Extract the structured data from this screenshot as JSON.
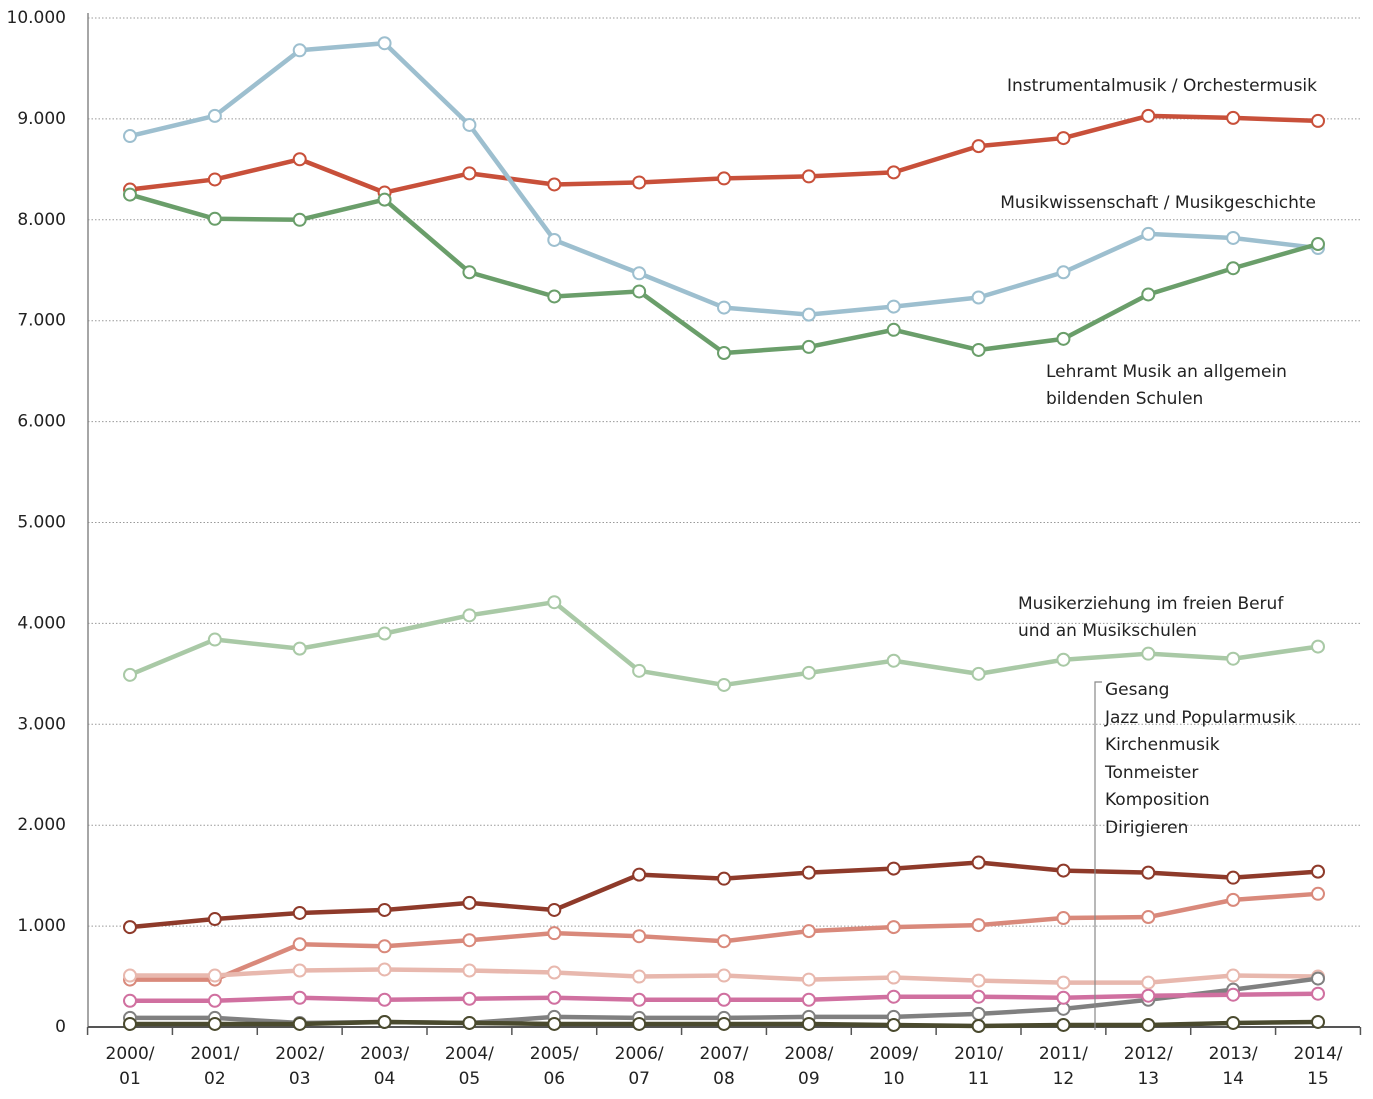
{
  "chart_data": {
    "type": "line",
    "categories": [
      "2000/ 01",
      "2001/ 02",
      "2002/ 03",
      "2003/ 04",
      "2004/ 05",
      "2005/ 06",
      "2006/ 07",
      "2007/ 08",
      "2008/ 09",
      "2009/ 10",
      "2010/ 11",
      "2011/ 12",
      "2012/ 13",
      "2013/ 14",
      "2014/ 15"
    ],
    "series": [
      {
        "name": "Instrumentalmusik / Orchestermusik",
        "color": "#c8503a",
        "values": [
          8300,
          8400,
          8600,
          8270,
          8460,
          8350,
          8370,
          8410,
          8430,
          8470,
          8730,
          8810,
          9030,
          9010,
          8980
        ]
      },
      {
        "name": "Musikwissenschaft / Musikgeschichte",
        "color": "#9dbfcf",
        "values": [
          8830,
          9030,
          9680,
          9750,
          8940,
          7800,
          7470,
          7130,
          7060,
          7140,
          7230,
          7480,
          7860,
          7820,
          7720
        ]
      },
      {
        "name": "Lehramt Musik an allgemein bildenden Schulen",
        "color": "#6a9e6a",
        "values": [
          8250,
          8010,
          8000,
          8200,
          7480,
          7240,
          7290,
          6680,
          6740,
          6910,
          6710,
          6820,
          7260,
          7520,
          7760
        ]
      },
      {
        "name": "Musikerziehung im freien Beruf und an Musikschulen",
        "color": "#a9c9a6",
        "values": [
          3490,
          3840,
          3750,
          3900,
          4080,
          4210,
          3530,
          3390,
          3510,
          3630,
          3500,
          3640,
          3700,
          3650,
          3770
        ]
      },
      {
        "name": "Gesang",
        "color": "#8e3a2a",
        "values": [
          990,
          1070,
          1130,
          1160,
          1230,
          1160,
          1510,
          1470,
          1530,
          1570,
          1630,
          1550,
          1530,
          1480,
          1540
        ]
      },
      {
        "name": "Jazz und Popularmusik",
        "color": "#d9897b",
        "values": [
          470,
          470,
          820,
          800,
          860,
          930,
          900,
          850,
          950,
          990,
          1010,
          1080,
          1090,
          1260,
          1320
        ]
      },
      {
        "name": "Kirchenmusik",
        "color": "#e8b8ae",
        "values": [
          510,
          510,
          560,
          570,
          560,
          540,
          500,
          510,
          470,
          490,
          460,
          440,
          440,
          510,
          500
        ]
      },
      {
        "name": "Tonmeister",
        "color": "#808080",
        "values": [
          90,
          90,
          40,
          50,
          40,
          100,
          90,
          90,
          100,
          100,
          130,
          180,
          270,
          370,
          480
        ]
      },
      {
        "name": "Komposition",
        "color": "#d070a0",
        "values": [
          260,
          260,
          290,
          270,
          280,
          290,
          270,
          270,
          270,
          300,
          300,
          290,
          310,
          320,
          330
        ]
      },
      {
        "name": "Dirigieren",
        "color": "#4a4a2e",
        "values": [
          30,
          30,
          30,
          50,
          40,
          30,
          30,
          30,
          30,
          20,
          10,
          20,
          20,
          40,
          50
        ]
      }
    ],
    "ylim": [
      0,
      10000
    ],
    "yticks": [
      0,
      {
        "value": 1000,
        "label": "1.000"
      },
      {
        "value": 2000,
        "label": "2.000"
      },
      {
        "value": 3000,
        "label": "3.000"
      },
      {
        "value": 4000,
        "label": "4.000"
      },
      {
        "value": 5000,
        "label": "5.000"
      },
      {
        "value": 6000,
        "label": "6.000"
      },
      {
        "value": 7000,
        "label": "7.000"
      },
      {
        "value": 8000,
        "label": "8.000"
      },
      {
        "value": 9000,
        "label": "9.000"
      },
      {
        "value": 10000,
        "label": "10.000"
      }
    ],
    "grid": true
  }
}
